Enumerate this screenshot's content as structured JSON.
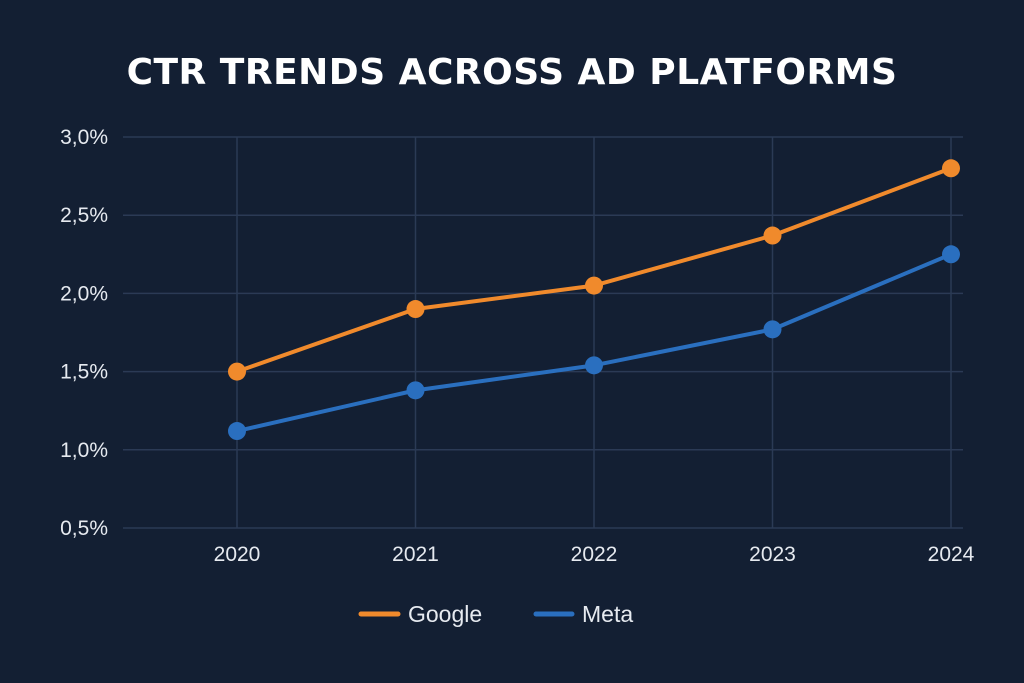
{
  "chart_data": {
    "type": "line",
    "title": "CTR TRENDS ACROSS AD PLATFORMS",
    "xlabel": "",
    "ylabel": "",
    "categories": [
      "2020",
      "2021",
      "2022",
      "2023",
      "2024"
    ],
    "ylim": [
      0.5,
      3.0
    ],
    "yticks": [
      3.0,
      2.5,
      2.0,
      1.5,
      1.0,
      0.5
    ],
    "ytick_labels": [
      "3,0%",
      "2,5%",
      "2,0%",
      "1,5%",
      "1,0%",
      "0,5%"
    ],
    "grid": true,
    "legend_position": "bottom-center",
    "series": [
      {
        "name": "Google",
        "color": "#f08a2c",
        "values": [
          1.5,
          1.9,
          2.05,
          2.37,
          2.8
        ]
      },
      {
        "name": "Meta",
        "color": "#2a6fbf",
        "values": [
          1.12,
          1.38,
          1.54,
          1.77,
          2.25
        ]
      }
    ]
  },
  "theme": {
    "background": "#131f33",
    "grid_color": "#2b3a55"
  }
}
